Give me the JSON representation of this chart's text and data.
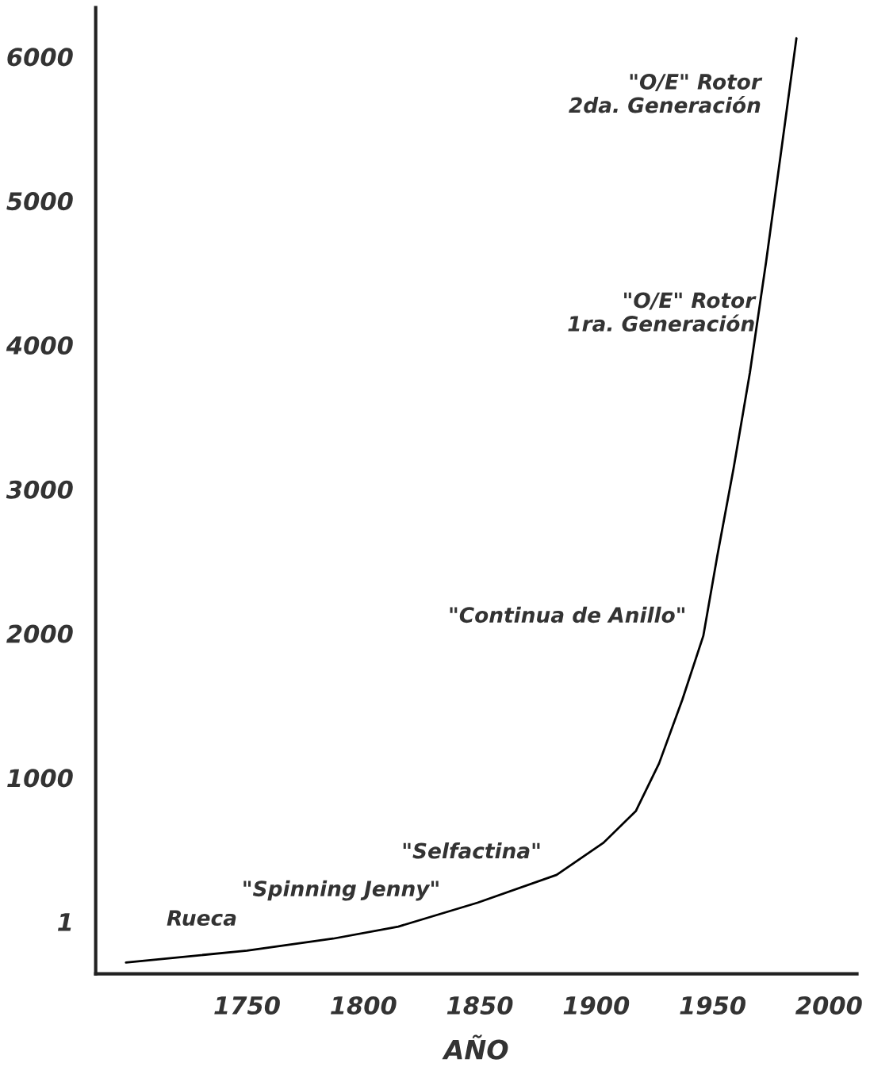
{
  "chart_data": {
    "type": "line",
    "xlabel": "AÑO",
    "x": [
      1698,
      1750,
      1787,
      1815,
      1849,
      1883,
      1903,
      1917,
      1927,
      1937,
      1946,
      1952,
      1959,
      1966,
      1973,
      1980,
      1986
    ],
    "series": [
      {
        "color": "#000000",
        "values": [
          -282,
          -199,
          -116,
          -33,
          133,
          326,
          547,
          768,
          1099,
          1541,
          1983,
          2536,
          3144,
          3807,
          4580,
          5409,
          6127
        ]
      }
    ],
    "xlim": [
      1685,
      2012
    ],
    "xticks": [
      1750,
      1800,
      1850,
      1900,
      1950,
      2000
    ],
    "ylim": [
      -360,
      6340
    ],
    "yticks": [
      1,
      1000,
      2000,
      3000,
      4000,
      5000,
      6000
    ],
    "grid": false,
    "legend": false,
    "marker": "none",
    "line_style": "solid",
    "annotations": [
      "Rueca",
      "\"Spinning Jenny\"",
      "\"Selfactina\"",
      "\"Continua de Anillo\"",
      "\"O/E\" Rotor\n1ra. Generación",
      "\"O/E\" Rotor\n2da. Generación"
    ]
  }
}
